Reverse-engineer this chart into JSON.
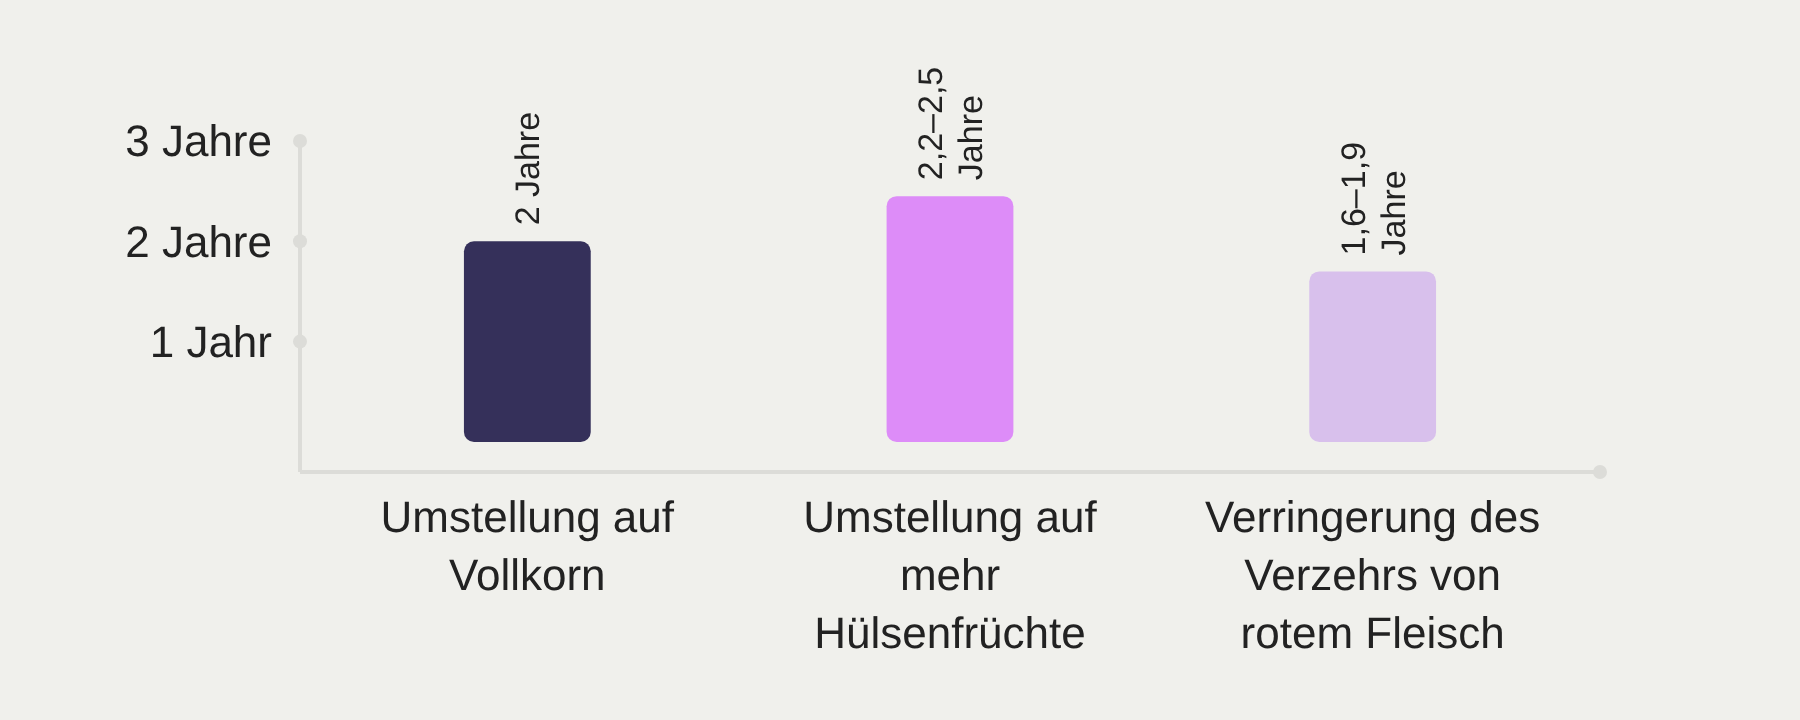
{
  "chart_data": {
    "type": "bar",
    "categories": [
      "Umstellung auf Vollkorn",
      "Umstellung auf mehr Hülsenfrüchte",
      "Verringerung des Verzehrs von rotem Fleisch"
    ],
    "values": [
      2,
      2.45,
      1.7
    ],
    "colors": [
      "#35305a",
      "#dd8cf8",
      "#d8c0ec"
    ],
    "value_labels": [
      "2 Jahre",
      "2,2–2,5 Jahre",
      "1,6–1,9 Jahre"
    ],
    "ylim": [
      -0.3,
      3.05
    ],
    "yticks": [
      {
        "value": 1,
        "label": "1 Jahr"
      },
      {
        "value": 2,
        "label": "2 Jahre"
      },
      {
        "value": 3,
        "label": "3 Jahre"
      }
    ],
    "grid": false
  }
}
